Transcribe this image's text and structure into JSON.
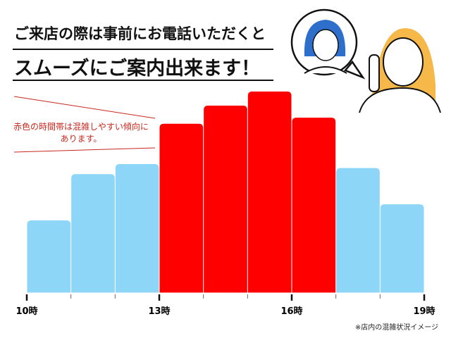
{
  "header": {
    "line1": "ご来店の際は事前にお電話いただくと",
    "line2": "スムーズにご案内出来ます！"
  },
  "annotation": {
    "line1": "赤色の時間帯は混雑しやすい傾向に",
    "line2": "あります。"
  },
  "caption": "※店内の混雑状況イメージ",
  "colors": {
    "busy": "#ff0000",
    "normal": "#8dd6f8",
    "annotation": "#c8281e"
  },
  "illustration": "two-people-on-phone",
  "chart_data": {
    "type": "bar",
    "categories": [
      "10-11",
      "11-12",
      "12-13",
      "13-14",
      "14-15",
      "15-16",
      "16-17",
      "17-18",
      "18-19"
    ],
    "values": [
      36,
      59,
      64,
      84,
      93,
      100,
      87,
      62,
      44
    ],
    "busy": [
      false,
      false,
      false,
      true,
      true,
      true,
      true,
      false,
      false
    ],
    "x_tick_labels": [
      "10時",
      "13時",
      "16時",
      "19時"
    ],
    "ylim": [
      0,
      100
    ],
    "grid": false
  }
}
